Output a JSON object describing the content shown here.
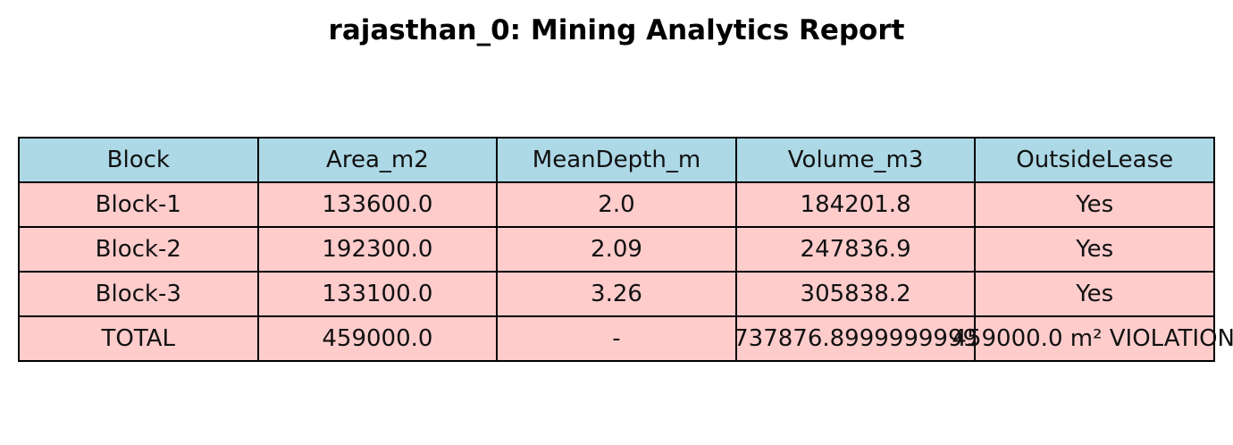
{
  "chart_data": {
    "type": "table",
    "title": "rajasthan_0: Mining Analytics Report",
    "columns": [
      "Block",
      "Area_m2",
      "MeanDepth_m",
      "Volume_m3",
      "OutsideLease"
    ],
    "rows": [
      [
        "Block-1",
        "133600.0",
        "2.0",
        "184201.8",
        "Yes"
      ],
      [
        "Block-2",
        "192300.0",
        "2.09",
        "247836.9",
        "Yes"
      ],
      [
        "Block-3",
        "133100.0",
        "3.26",
        "305838.2",
        "Yes"
      ],
      [
        "TOTAL",
        "459000.0",
        "-",
        "737876.8999999999",
        "459000.0 m² VIOLATION"
      ]
    ],
    "header_color": "#add8e6",
    "cell_color": "#ffcccc"
  }
}
